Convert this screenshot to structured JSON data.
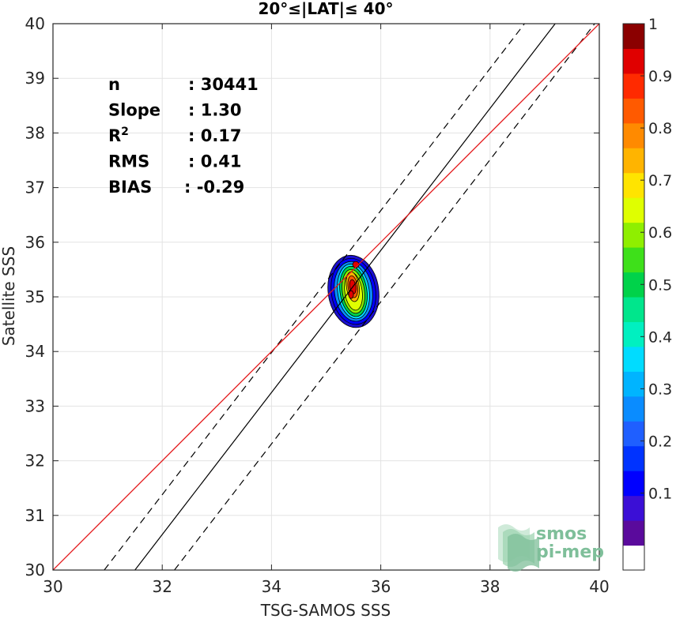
{
  "chart_data": {
    "type": "scatter",
    "title": "20°≤|LAT|≤ 40°",
    "xlabel": "TSG-SAMOS SSS",
    "ylabel": "Satellite SSS",
    "xlim": [
      30,
      40
    ],
    "ylim": [
      30,
      40
    ],
    "xticks": [
      "30",
      "32",
      "34",
      "36",
      "38",
      "40"
    ],
    "yticks": [
      "30",
      "31",
      "32",
      "33",
      "34",
      "35",
      "36",
      "37",
      "38",
      "39",
      "40"
    ],
    "grid": true,
    "stats": [
      {
        "label": "n",
        "value": ": 30441"
      },
      {
        "label": "Slope",
        "value": ": 1.30"
      },
      {
        "label": "R",
        "sup": "2",
        "value": ": 0.17"
      },
      {
        "label": "RMS",
        "value": ": 0.41"
      },
      {
        "label": "BIAS",
        "value": ": -0.29"
      }
    ],
    "lines": {
      "identity": {
        "color": "#e41a1c",
        "points": [
          [
            30,
            30
          ],
          [
            40,
            40
          ]
        ]
      },
      "fit": {
        "color": "#000000",
        "slope": 1.3,
        "intercept": -10.95
      },
      "fit_upper": {
        "color": "#000000",
        "style": "dashed",
        "slope": 1.3,
        "intercept": -10.22
      },
      "fit_lower": {
        "color": "#000000",
        "style": "dashed",
        "slope": 1.3,
        "intercept": -11.89
      }
    },
    "density_center": [
      35.5,
      35.1
    ],
    "colorbar": {
      "ticks": [
        "0.1",
        "0.2",
        "0.3",
        "0.4",
        "0.5",
        "0.6",
        "0.7",
        "0.8",
        "0.9",
        "1"
      ],
      "range": [
        0,
        1
      ],
      "colors": [
        "#ffffff",
        "#5a0a9c",
        "#3b0fd6",
        "#0000ff",
        "#0033ff",
        "#1f5fff",
        "#0a8cff",
        "#00b4ff",
        "#00dcff",
        "#00f0c0",
        "#00e68c",
        "#00d24a",
        "#3ee01a",
        "#8fef00",
        "#dfff00",
        "#ffe400",
        "#ffb400",
        "#ff8a00",
        "#ff5a00",
        "#ff2a00",
        "#e00000",
        "#8b0000"
      ]
    }
  },
  "watermark": {
    "line1": "smos",
    "line2": "pi-mep"
  }
}
